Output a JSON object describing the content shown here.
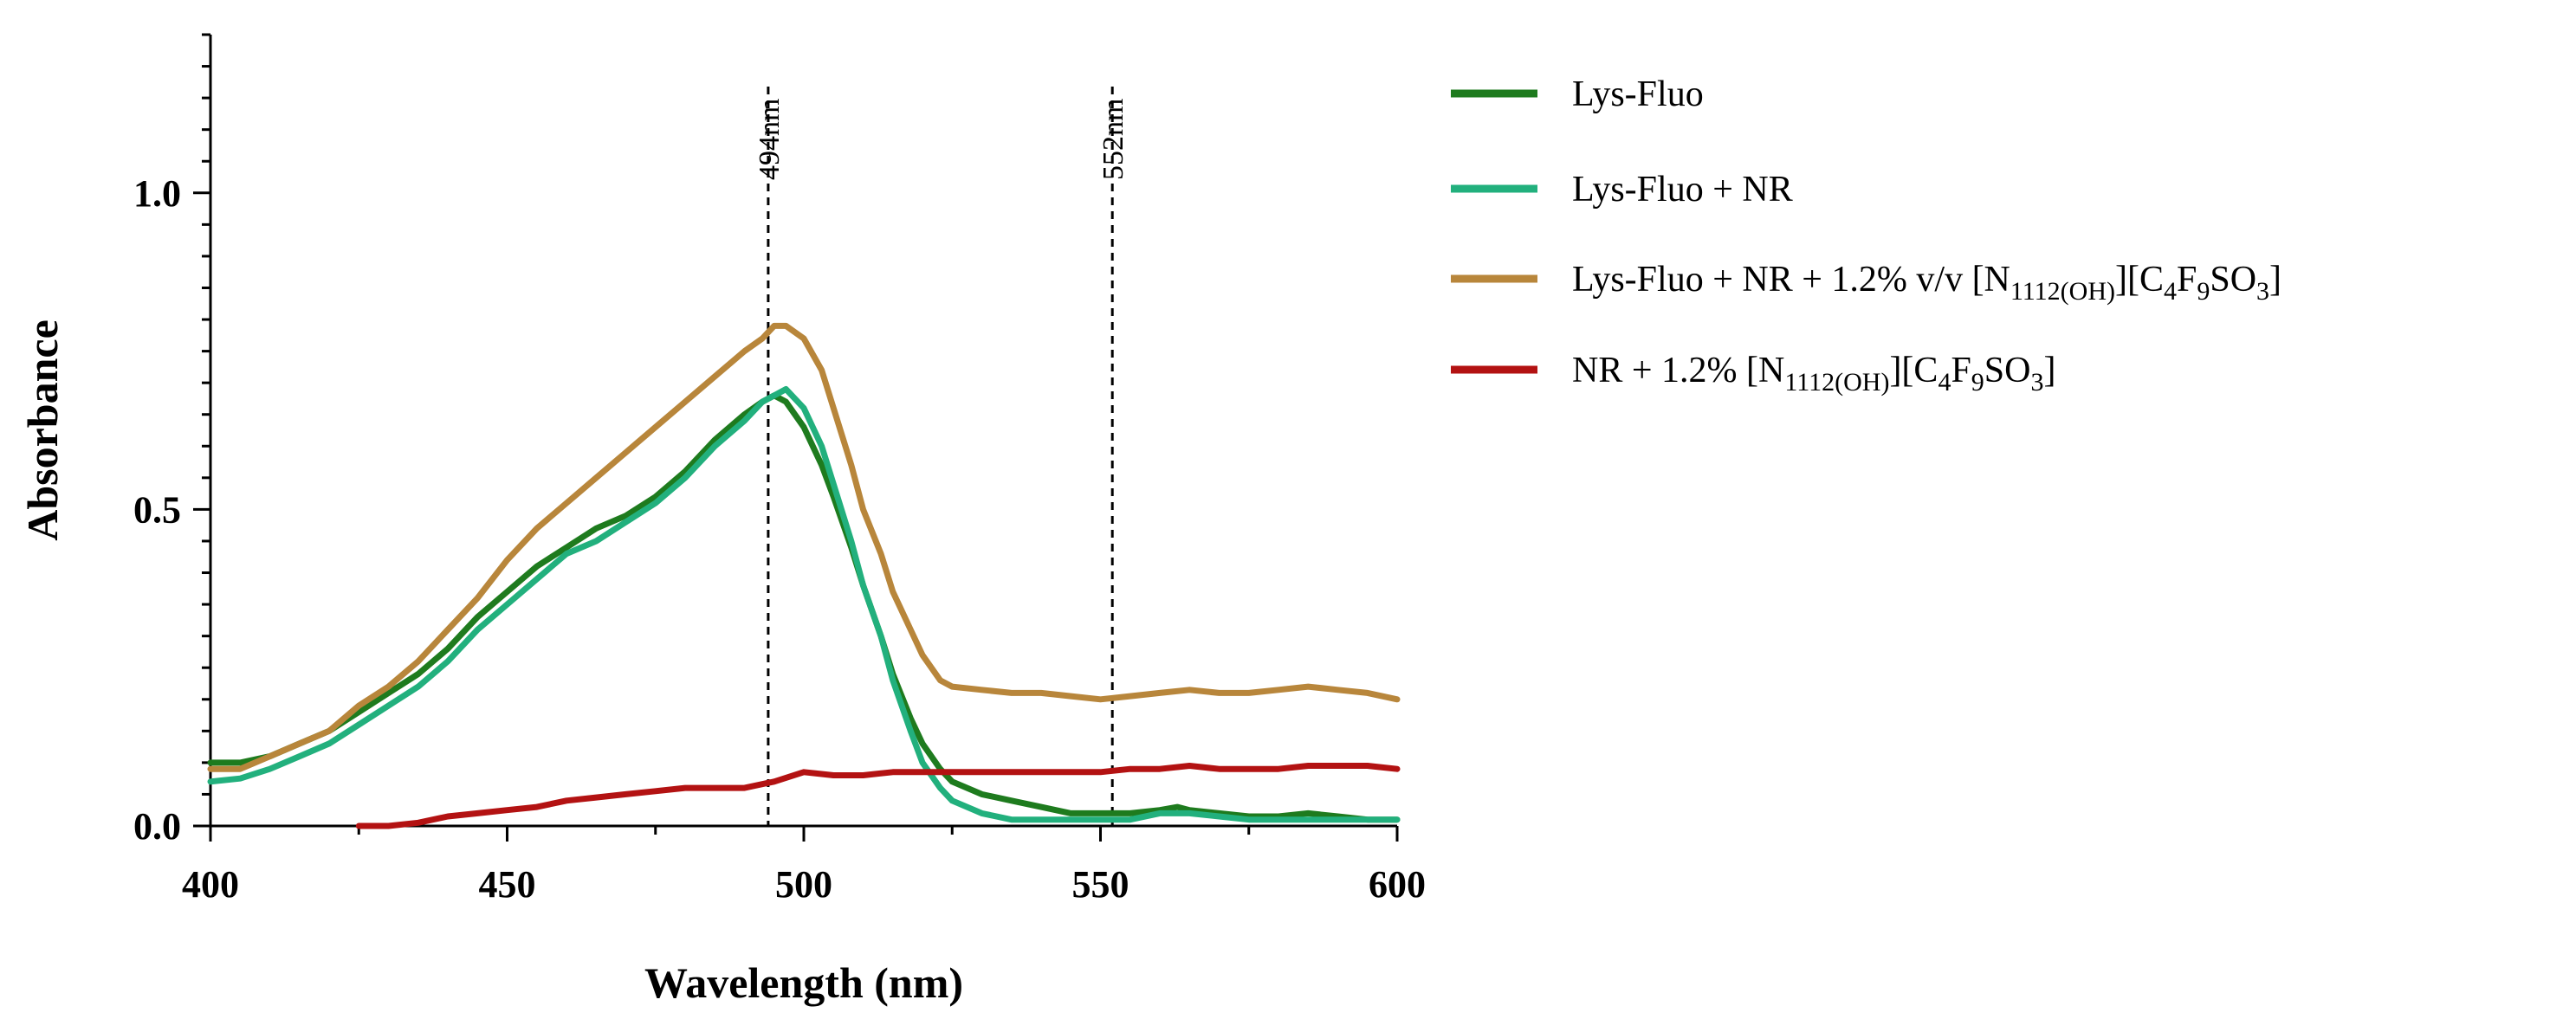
{
  "chart_data": {
    "type": "line",
    "xlabel": "Wavelength (nm)",
    "ylabel": "Absorbance",
    "xlim": [
      400,
      600
    ],
    "ylim": [
      0,
      1.25
    ],
    "xticks": [
      "400",
      "450",
      "500",
      "550",
      "600"
    ],
    "yticks": [
      "0.0",
      "0.5",
      "1.0"
    ],
    "grid": false,
    "legend_position": "right",
    "annotations": [
      {
        "x": 494,
        "label": "494nm"
      },
      {
        "x": 552,
        "label": "552nm"
      }
    ],
    "series": [
      {
        "name": "Lys-Fluo",
        "legend_parts": [
          {
            "t": "Lys-Fluo",
            "s": ""
          }
        ],
        "color": "#1e7b1e",
        "x": [
          400,
          405,
          410,
          415,
          420,
          425,
          430,
          435,
          440,
          445,
          450,
          455,
          460,
          465,
          470,
          475,
          480,
          485,
          490,
          493,
          495,
          497,
          500,
          503,
          505,
          508,
          510,
          513,
          515,
          518,
          520,
          523,
          525,
          530,
          535,
          540,
          545,
          550,
          555,
          560,
          563,
          565,
          570,
          575,
          580,
          585,
          590,
          595,
          600
        ],
        "y": [
          0.1,
          0.1,
          0.11,
          0.13,
          0.15,
          0.18,
          0.21,
          0.24,
          0.28,
          0.33,
          0.37,
          0.41,
          0.44,
          0.47,
          0.49,
          0.52,
          0.56,
          0.61,
          0.65,
          0.67,
          0.68,
          0.67,
          0.63,
          0.57,
          0.52,
          0.44,
          0.38,
          0.3,
          0.24,
          0.17,
          0.13,
          0.09,
          0.07,
          0.05,
          0.04,
          0.03,
          0.02,
          0.02,
          0.02,
          0.025,
          0.03,
          0.025,
          0.02,
          0.015,
          0.015,
          0.02,
          0.015,
          0.01,
          0.01
        ]
      },
      {
        "name": "Lys-Fluo + NR",
        "legend_parts": [
          {
            "t": "Lys-Fluo + NR",
            "s": ""
          }
        ],
        "color": "#22b07d",
        "x": [
          400,
          405,
          410,
          415,
          420,
          425,
          430,
          435,
          440,
          445,
          450,
          455,
          460,
          465,
          470,
          475,
          480,
          485,
          490,
          493,
          495,
          497,
          500,
          503,
          505,
          508,
          510,
          513,
          515,
          518,
          520,
          523,
          525,
          530,
          535,
          540,
          545,
          550,
          555,
          560,
          565,
          570,
          575,
          580,
          585,
          590,
          595,
          600
        ],
        "y": [
          0.07,
          0.075,
          0.09,
          0.11,
          0.13,
          0.16,
          0.19,
          0.22,
          0.26,
          0.31,
          0.35,
          0.39,
          0.43,
          0.45,
          0.48,
          0.51,
          0.55,
          0.6,
          0.64,
          0.67,
          0.68,
          0.69,
          0.66,
          0.6,
          0.54,
          0.45,
          0.38,
          0.3,
          0.23,
          0.15,
          0.1,
          0.06,
          0.04,
          0.02,
          0.01,
          0.01,
          0.01,
          0.01,
          0.01,
          0.02,
          0.02,
          0.015,
          0.01,
          0.01,
          0.01,
          0.01,
          0.01,
          0.01
        ]
      },
      {
        "name": "Lys-Fluo + NR + 1.2% v/v [N1112(OH)][C4F9SO3]",
        "legend_parts": [
          {
            "t": "Lys-Fluo + NR + 1.2% v/v [N",
            "s": ""
          },
          {
            "t": "1112(OH)",
            "s": "sub"
          },
          {
            "t": "][C",
            "s": ""
          },
          {
            "t": "4",
            "s": "sub"
          },
          {
            "t": "F",
            "s": ""
          },
          {
            "t": "9",
            "s": "sub"
          },
          {
            "t": "SO",
            "s": ""
          },
          {
            "t": "3",
            "s": "sub"
          },
          {
            "t": "]",
            "s": ""
          }
        ],
        "color": "#b8863b",
        "x": [
          400,
          405,
          410,
          415,
          420,
          425,
          430,
          435,
          440,
          445,
          450,
          455,
          460,
          465,
          470,
          475,
          480,
          485,
          490,
          493,
          495,
          497,
          500,
          503,
          505,
          508,
          510,
          513,
          515,
          518,
          520,
          523,
          525,
          530,
          535,
          540,
          545,
          550,
          555,
          560,
          565,
          570,
          575,
          580,
          585,
          590,
          595,
          600
        ],
        "y": [
          0.09,
          0.09,
          0.11,
          0.13,
          0.15,
          0.19,
          0.22,
          0.26,
          0.31,
          0.36,
          0.42,
          0.47,
          0.51,
          0.55,
          0.59,
          0.63,
          0.67,
          0.71,
          0.75,
          0.77,
          0.79,
          0.79,
          0.77,
          0.72,
          0.66,
          0.57,
          0.5,
          0.43,
          0.37,
          0.31,
          0.27,
          0.23,
          0.22,
          0.215,
          0.21,
          0.21,
          0.205,
          0.2,
          0.205,
          0.21,
          0.215,
          0.21,
          0.21,
          0.215,
          0.22,
          0.215,
          0.21,
          0.2
        ]
      },
      {
        "name": "NR + 1.2% [N1112(OH)][C4F9SO3]",
        "legend_parts": [
          {
            "t": "NR + 1.2% [N",
            "s": ""
          },
          {
            "t": "1112(OH)",
            "s": "sub"
          },
          {
            "t": "][C",
            "s": ""
          },
          {
            "t": "4",
            "s": "sub"
          },
          {
            "t": "F",
            "s": ""
          },
          {
            "t": "9",
            "s": "sub"
          },
          {
            "t": "SO",
            "s": ""
          },
          {
            "t": "3",
            "s": "sub"
          },
          {
            "t": "]",
            "s": ""
          }
        ],
        "color": "#b31212",
        "x": [
          425,
          430,
          435,
          440,
          445,
          450,
          455,
          460,
          465,
          470,
          475,
          480,
          485,
          490,
          495,
          500,
          505,
          510,
          515,
          520,
          525,
          530,
          535,
          540,
          545,
          550,
          555,
          560,
          565,
          570,
          575,
          580,
          585,
          590,
          595,
          600
        ],
        "y": [
          0.0,
          0.0,
          0.005,
          0.015,
          0.02,
          0.025,
          0.03,
          0.04,
          0.045,
          0.05,
          0.055,
          0.06,
          0.06,
          0.06,
          0.07,
          0.085,
          0.08,
          0.08,
          0.085,
          0.085,
          0.085,
          0.085,
          0.085,
          0.085,
          0.085,
          0.085,
          0.09,
          0.09,
          0.095,
          0.09,
          0.09,
          0.09,
          0.095,
          0.095,
          0.095,
          0.09
        ]
      }
    ]
  }
}
